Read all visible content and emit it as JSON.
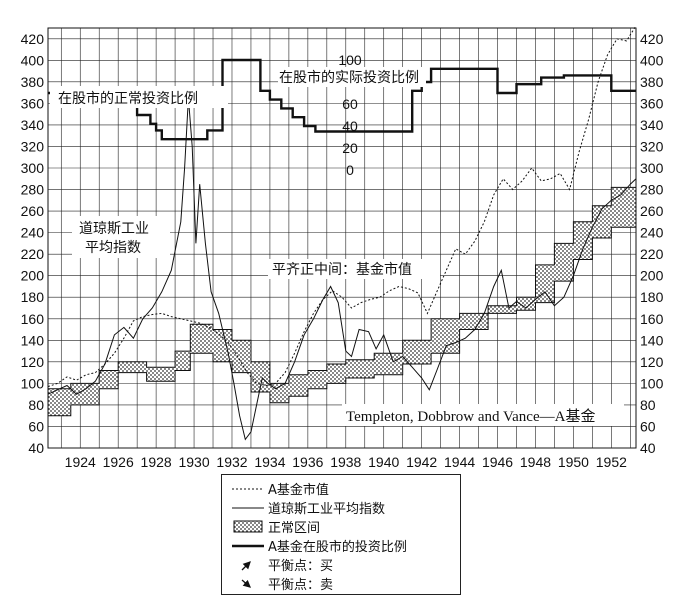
{
  "chart_data": {
    "type": "line",
    "title": "",
    "x_ticks": [
      "1924",
      "1926",
      "1928",
      "1930",
      "1932",
      "1934",
      "1936",
      "1938",
      "1940",
      "1942",
      "1944",
      "1946",
      "1948",
      "1950",
      "1952"
    ],
    "x_range": [
      1922.3,
      1953.3
    ],
    "y_left": {
      "ticks": [
        40,
        60,
        80,
        100,
        120,
        140,
        160,
        180,
        200,
        220,
        240,
        260,
        280,
        300,
        320,
        340,
        360,
        380,
        400,
        420
      ],
      "range": [
        40,
        430
      ]
    },
    "y_right": {
      "ticks": [
        40,
        60,
        80,
        100,
        120,
        140,
        160,
        180,
        200,
        220,
        240,
        260,
        280,
        300,
        320,
        340,
        360,
        380,
        400,
        420
      ],
      "range": [
        40,
        430
      ]
    },
    "y_inner": {
      "ticks": [
        0,
        20,
        40,
        60,
        80,
        100
      ],
      "note": "inner scale 0-100 for stock allocation (%)"
    },
    "grid": true,
    "series": [
      {
        "name": "A基金市值",
        "style": "dashed",
        "points": [
          [
            1922.3,
            97
          ],
          [
            1922.8,
            100
          ],
          [
            1923.3,
            106
          ],
          [
            1923.8,
            103
          ],
          [
            1924.3,
            108
          ],
          [
            1924.8,
            110
          ],
          [
            1925.3,
            118
          ],
          [
            1925.8,
            128
          ],
          [
            1926.3,
            142
          ],
          [
            1926.8,
            158
          ],
          [
            1927.3,
            162
          ],
          [
            1927.8,
            164
          ],
          [
            1928.3,
            165
          ],
          [
            1928.8,
            162
          ],
          [
            1929.3,
            160
          ],
          [
            1929.8,
            158
          ],
          [
            1930.3,
            156
          ],
          [
            1930.8,
            152
          ],
          [
            1931.3,
            146
          ],
          [
            1931.8,
            138
          ],
          [
            1932.3,
            125
          ],
          [
            1932.8,
            110
          ],
          [
            1933.3,
            100
          ],
          [
            1933.8,
            98
          ],
          [
            1934.3,
            100
          ],
          [
            1934.8,
            110
          ],
          [
            1935.3,
            128
          ],
          [
            1935.8,
            148
          ],
          [
            1936.3,
            165
          ],
          [
            1936.8,
            178
          ],
          [
            1937.3,
            186
          ],
          [
            1937.8,
            180
          ],
          [
            1938.3,
            170
          ],
          [
            1938.8,
            175
          ],
          [
            1939.3,
            178
          ],
          [
            1939.8,
            180
          ],
          [
            1940.3,
            186
          ],
          [
            1940.8,
            190
          ],
          [
            1941.3,
            188
          ],
          [
            1941.8,
            184
          ],
          [
            1942.3,
            165
          ],
          [
            1942.8,
            185
          ],
          [
            1943.3,
            205
          ],
          [
            1943.8,
            225
          ],
          [
            1944.3,
            220
          ],
          [
            1944.8,
            232
          ],
          [
            1945.3,
            250
          ],
          [
            1945.8,
            275
          ],
          [
            1946.3,
            290
          ],
          [
            1946.8,
            280
          ],
          [
            1947.3,
            288
          ],
          [
            1947.8,
            300
          ],
          [
            1948.3,
            288
          ],
          [
            1948.8,
            290
          ],
          [
            1949.3,
            295
          ],
          [
            1949.8,
            280
          ],
          [
            1950.3,
            315
          ],
          [
            1950.8,
            345
          ],
          [
            1951.3,
            380
          ],
          [
            1951.8,
            405
          ],
          [
            1952.3,
            420
          ],
          [
            1952.8,
            418
          ],
          [
            1953.3,
            432
          ]
        ]
      },
      {
        "name": "道琼斯工业平均指数",
        "style": "solid",
        "points": [
          [
            1922.3,
            90
          ],
          [
            1922.8,
            94
          ],
          [
            1923.3,
            98
          ],
          [
            1923.8,
            90
          ],
          [
            1924.3,
            95
          ],
          [
            1924.8,
            102
          ],
          [
            1925.3,
            118
          ],
          [
            1925.8,
            145
          ],
          [
            1926.3,
            152
          ],
          [
            1926.8,
            142
          ],
          [
            1927.3,
            160
          ],
          [
            1927.8,
            170
          ],
          [
            1928.3,
            185
          ],
          [
            1928.8,
            205
          ],
          [
            1929.3,
            250
          ],
          [
            1929.5,
            300
          ],
          [
            1929.7,
            365
          ],
          [
            1929.9,
            320
          ],
          [
            1930.1,
            230
          ],
          [
            1930.3,
            285
          ],
          [
            1930.6,
            230
          ],
          [
            1930.9,
            185
          ],
          [
            1931.3,
            165
          ],
          [
            1931.8,
            128
          ],
          [
            1932.1,
            100
          ],
          [
            1932.4,
            70
          ],
          [
            1932.7,
            48
          ],
          [
            1933.0,
            55
          ],
          [
            1933.3,
            80
          ],
          [
            1933.6,
            105
          ],
          [
            1933.9,
            100
          ],
          [
            1934.3,
            95
          ],
          [
            1934.8,
            100
          ],
          [
            1935.3,
            120
          ],
          [
            1935.8,
            145
          ],
          [
            1936.3,
            160
          ],
          [
            1936.8,
            178
          ],
          [
            1937.2,
            190
          ],
          [
            1937.6,
            175
          ],
          [
            1938.0,
            130
          ],
          [
            1938.3,
            125
          ],
          [
            1938.7,
            150
          ],
          [
            1939.2,
            148
          ],
          [
            1939.6,
            132
          ],
          [
            1940.0,
            145
          ],
          [
            1940.5,
            120
          ],
          [
            1941.0,
            125
          ],
          [
            1941.5,
            115
          ],
          [
            1942.0,
            105
          ],
          [
            1942.4,
            94
          ],
          [
            1942.8,
            112
          ],
          [
            1943.3,
            135
          ],
          [
            1943.8,
            138
          ],
          [
            1944.3,
            142
          ],
          [
            1944.8,
            150
          ],
          [
            1945.3,
            165
          ],
          [
            1945.8,
            190
          ],
          [
            1946.2,
            205
          ],
          [
            1946.6,
            170
          ],
          [
            1947.0,
            176
          ],
          [
            1947.5,
            170
          ],
          [
            1948.0,
            178
          ],
          [
            1948.5,
            185
          ],
          [
            1949.0,
            172
          ],
          [
            1949.5,
            180
          ],
          [
            1950.0,
            200
          ],
          [
            1950.5,
            225
          ],
          [
            1951.0,
            245
          ],
          [
            1951.5,
            262
          ],
          [
            1952.0,
            270
          ],
          [
            1952.5,
            275
          ],
          [
            1953.0,
            285
          ],
          [
            1953.3,
            290
          ]
        ]
      },
      {
        "name": "正常区间",
        "style": "band",
        "lower": [
          [
            1922.3,
            70
          ],
          [
            1923.5,
            70
          ],
          [
            1923.5,
            80
          ],
          [
            1925,
            80
          ],
          [
            1925,
            95
          ],
          [
            1926,
            95
          ],
          [
            1926,
            110
          ],
          [
            1927.5,
            110
          ],
          [
            1927.5,
            102
          ],
          [
            1929,
            102
          ],
          [
            1929,
            112
          ],
          [
            1929.8,
            112
          ],
          [
            1929.8,
            128
          ],
          [
            1931,
            128
          ],
          [
            1931,
            120
          ],
          [
            1932,
            120
          ],
          [
            1932,
            110
          ],
          [
            1933,
            110
          ],
          [
            1933,
            92
          ],
          [
            1934,
            92
          ],
          [
            1934,
            82
          ],
          [
            1935,
            82
          ],
          [
            1935,
            88
          ],
          [
            1936,
            88
          ],
          [
            1936,
            95
          ],
          [
            1937,
            95
          ],
          [
            1937,
            100
          ],
          [
            1938,
            100
          ],
          [
            1938,
            105
          ],
          [
            1939.5,
            105
          ],
          [
            1939.5,
            108
          ],
          [
            1941,
            108
          ],
          [
            1941,
            118
          ],
          [
            1942.5,
            118
          ],
          [
            1942.5,
            128
          ],
          [
            1944,
            128
          ],
          [
            1944,
            150
          ],
          [
            1945.5,
            150
          ],
          [
            1945.5,
            165
          ],
          [
            1947,
            165
          ],
          [
            1947,
            168
          ],
          [
            1948,
            168
          ],
          [
            1948,
            175
          ],
          [
            1949,
            175
          ],
          [
            1949,
            195
          ],
          [
            1950,
            195
          ],
          [
            1950,
            215
          ],
          [
            1951,
            215
          ],
          [
            1951,
            235
          ],
          [
            1952,
            235
          ],
          [
            1952,
            245
          ],
          [
            1953.3,
            245
          ]
        ],
        "upper": [
          [
            1922.3,
            95
          ],
          [
            1923.5,
            95
          ],
          [
            1923.5,
            100
          ],
          [
            1925,
            100
          ],
          [
            1925,
            112
          ],
          [
            1926,
            112
          ],
          [
            1926,
            120
          ],
          [
            1927.5,
            120
          ],
          [
            1927.5,
            115
          ],
          [
            1929,
            115
          ],
          [
            1929,
            130
          ],
          [
            1929.8,
            130
          ],
          [
            1929.8,
            155
          ],
          [
            1931,
            155
          ],
          [
            1931,
            150
          ],
          [
            1932,
            150
          ],
          [
            1932,
            140
          ],
          [
            1933,
            140
          ],
          [
            1933,
            120
          ],
          [
            1934,
            120
          ],
          [
            1934,
            100
          ],
          [
            1935,
            100
          ],
          [
            1935,
            108
          ],
          [
            1936,
            108
          ],
          [
            1936,
            112
          ],
          [
            1937,
            112
          ],
          [
            1937,
            118
          ],
          [
            1938,
            118
          ],
          [
            1938,
            122
          ],
          [
            1939.5,
            122
          ],
          [
            1939.5,
            128
          ],
          [
            1941,
            128
          ],
          [
            1941,
            140
          ],
          [
            1942.5,
            140
          ],
          [
            1942.5,
            160
          ],
          [
            1944,
            160
          ],
          [
            1944,
            165
          ],
          [
            1945.5,
            165
          ],
          [
            1945.5,
            172
          ],
          [
            1947,
            172
          ],
          [
            1947,
            180
          ],
          [
            1948,
            180
          ],
          [
            1948,
            210
          ],
          [
            1949,
            210
          ],
          [
            1949,
            230
          ],
          [
            1950,
            230
          ],
          [
            1950,
            250
          ],
          [
            1951,
            250
          ],
          [
            1951,
            265
          ],
          [
            1952,
            265
          ],
          [
            1952,
            282
          ],
          [
            1953.3,
            282
          ]
        ]
      },
      {
        "name": "A基金在股市的投资比例",
        "style": "bold-step",
        "scale": "inner 0-100",
        "points": [
          [
            1922.3,
            70
          ],
          [
            1922.8,
            70
          ],
          [
            1922.8,
            64
          ],
          [
            1926,
            64
          ],
          [
            1926,
            58
          ],
          [
            1927,
            58
          ],
          [
            1927,
            50
          ],
          [
            1927.7,
            50
          ],
          [
            1927.7,
            42
          ],
          [
            1928,
            42
          ],
          [
            1928,
            36
          ],
          [
            1928.3,
            36
          ],
          [
            1928.3,
            28
          ],
          [
            1930.7,
            28
          ],
          [
            1930.7,
            36
          ],
          [
            1931.5,
            36
          ],
          [
            1931.5,
            100
          ],
          [
            1933.5,
            100
          ],
          [
            1933.5,
            72
          ],
          [
            1934,
            72
          ],
          [
            1934,
            64
          ],
          [
            1934.6,
            64
          ],
          [
            1934.6,
            56
          ],
          [
            1935.2,
            56
          ],
          [
            1935.2,
            48
          ],
          [
            1935.8,
            48
          ],
          [
            1935.8,
            40
          ],
          [
            1936.4,
            40
          ],
          [
            1936.4,
            35
          ],
          [
            1941.5,
            35
          ],
          [
            1941.5,
            72
          ],
          [
            1942,
            72
          ],
          [
            1942,
            80
          ],
          [
            1942.5,
            80
          ],
          [
            1942.5,
            92
          ],
          [
            1946,
            92
          ],
          [
            1946,
            70
          ],
          [
            1947,
            70
          ],
          [
            1947,
            78
          ],
          [
            1948.3,
            78
          ],
          [
            1948.3,
            84
          ],
          [
            1949.5,
            84
          ],
          [
            1949.5,
            86
          ],
          [
            1952,
            86
          ],
          [
            1952,
            72
          ],
          [
            1953.3,
            72
          ]
        ]
      }
    ],
    "annotations": [
      {
        "text": "在股市的正常投资比例"
      },
      {
        "text": "在股市的实际投资比例"
      },
      {
        "text": "道琼斯工业"
      },
      {
        "text": "平均指数"
      },
      {
        "text": "平齐正中间：基金市值"
      },
      {
        "text": "Templeton, Dobbrow and Vance—A基金"
      }
    ]
  },
  "legend": {
    "items": [
      {
        "label": "A基金市值"
      },
      {
        "label": "道琼斯工业平均指数"
      },
      {
        "label": "正常区间"
      },
      {
        "label": "A基金在股市的投资比例"
      },
      {
        "label": "平衡点：买"
      },
      {
        "label": "平衡点：卖"
      }
    ]
  }
}
